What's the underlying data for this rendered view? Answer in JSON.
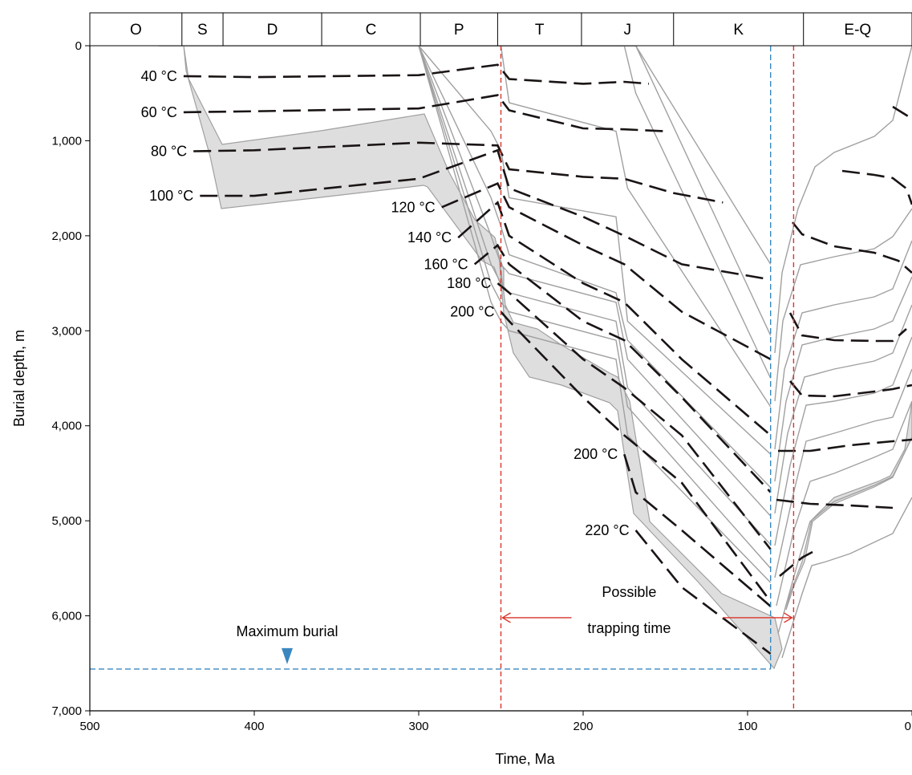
{
  "chart_data": {
    "type": "line",
    "xlabel": "Time, Ma",
    "ylabel": "Burial depth, m",
    "xlim": [
      500,
      0
    ],
    "ylim": [
      0,
      7000
    ],
    "x_ticks": [
      500,
      400,
      300,
      200,
      100,
      0
    ],
    "x_tick_labels": [
      "500",
      "400",
      "300",
      "200",
      "100",
      "0"
    ],
    "y_ticks": [
      0,
      1000,
      2000,
      3000,
      4000,
      5000,
      6000,
      7000
    ],
    "y_tick_labels": [
      "0",
      "1,000",
      "2,000",
      "3,000",
      "4,000",
      "5,000",
      "6,000",
      "7,000"
    ],
    "grid": false,
    "periods": [
      {
        "label": "O",
        "start": 500,
        "end": 444
      },
      {
        "label": "S",
        "start": 444,
        "end": 419
      },
      {
        "label": "D",
        "start": 419,
        "end": 359
      },
      {
        "label": "C",
        "start": 359,
        "end": 299
      },
      {
        "label": "P",
        "start": 299,
        "end": 252
      },
      {
        "label": "T",
        "start": 252,
        "end": 201
      },
      {
        "label": "J",
        "start": 201,
        "end": 145
      },
      {
        "label": "K",
        "start": 145,
        "end": 66
      },
      {
        "label": "E-Q",
        "start": 66,
        "end": 0
      }
    ],
    "burial_curves": [
      {
        "x": [
          458,
          443,
          420,
          300,
          294,
          252,
          245,
          175,
          168,
          86
        ],
        "y": [
          0,
          0,
          0,
          0,
          0,
          0,
          0,
          0,
          0,
          2300
        ]
      },
      {
        "x": [
          300,
          252,
          245,
          175,
          168,
          86
        ],
        "y": [
          0,
          0,
          0,
          0,
          0,
          3050
        ]
      },
      {
        "x": [
          300,
          252,
          245,
          175,
          168,
          86
        ],
        "y": [
          0,
          0,
          0,
          0,
          500,
          3500
        ]
      },
      {
        "x": [
          300,
          256,
          250,
          245,
          180,
          173,
          86
        ],
        "y": [
          0,
          0,
          0,
          600,
          900,
          1500,
          3800
        ]
      },
      {
        "x": [
          300,
          256,
          250,
          245,
          180,
          173,
          86
        ],
        "y": [
          0,
          900,
          1100,
          1600,
          1800,
          2900,
          4300
        ]
      },
      {
        "x": [
          300,
          256,
          250,
          245,
          180,
          173,
          86
        ],
        "y": [
          0,
          1600,
          1900,
          2200,
          2600,
          3100,
          4650
        ]
      },
      {
        "x": [
          300,
          256,
          250,
          245,
          180,
          173,
          86
        ],
        "y": [
          0,
          2000,
          2300,
          2400,
          2700,
          3300,
          4950
        ]
      },
      {
        "x": [
          300,
          256,
          250,
          245,
          180,
          173,
          86
        ],
        "y": [
          0,
          2300,
          2500,
          2600,
          2900,
          3600,
          5250
        ]
      },
      {
        "x": [
          300,
          256,
          250,
          245,
          180,
          173,
          86
        ],
        "y": [
          0,
          2500,
          2700,
          2800,
          3100,
          3800,
          5500
        ]
      },
      {
        "x": [
          300,
          256,
          250,
          245,
          180,
          173,
          86
        ],
        "y": [
          0,
          2700,
          2900,
          3000,
          3300,
          4100,
          5650
        ]
      }
    ],
    "isotherms": [
      {
        "label": "40 °C",
        "x": [
          443,
          400,
          300,
          252,
          245,
          200,
          175,
          160
        ],
        "y": [
          320,
          330,
          310,
          200,
          350,
          400,
          380,
          400
        ]
      },
      {
        "label": "60 °C",
        "x": [
          443,
          400,
          300,
          252,
          245,
          200,
          175,
          150
        ],
        "y": [
          700,
          690,
          660,
          520,
          680,
          870,
          880,
          900
        ]
      },
      {
        "label": "80 °C",
        "x": [
          437,
          400,
          300,
          252,
          245,
          200,
          175,
          145,
          115
        ],
        "y": [
          1110,
          1100,
          1020,
          1050,
          1300,
          1380,
          1400,
          1550,
          1650
        ]
      },
      {
        "label": "100 °C",
        "x": [
          433,
          400,
          300,
          252,
          245,
          200,
          175,
          140,
          90,
          86
        ],
        "y": [
          1580,
          1580,
          1400,
          1100,
          1500,
          1800,
          2000,
          2300,
          2450,
          2460
        ]
      },
      {
        "label": "120 °C",
        "x": [
          286,
          252,
          245,
          200,
          175,
          140,
          86
        ],
        "y": [
          1700,
          1450,
          1700,
          2100,
          2300,
          2800,
          3300
        ]
      },
      {
        "label": "140 °C",
        "x": [
          276,
          252,
          245,
          200,
          175,
          140,
          86
        ],
        "y": [
          2020,
          1650,
          2000,
          2500,
          2700,
          3300,
          4100
        ]
      },
      {
        "label": "160 °C",
        "x": [
          266,
          252,
          245,
          200,
          175,
          140,
          86
        ],
        "y": [
          2300,
          2100,
          2300,
          2900,
          3100,
          3700,
          4700
        ]
      },
      {
        "label": "180 °C",
        "x": [
          252,
          245,
          200,
          175,
          140,
          86
        ],
        "y": [
          2500,
          2600,
          3300,
          3600,
          4100,
          5300
        ]
      },
      {
        "label": "200 °C",
        "x": [
          250,
          245,
          200,
          175,
          140,
          86
        ],
        "y": [
          2800,
          2900,
          3700,
          4100,
          4600,
          5850
        ]
      },
      {
        "label": "200 °C",
        "x": [
          175,
          168,
          140,
          86
        ],
        "y": [
          4300,
          4700,
          5100,
          5900
        ]
      },
      {
        "label": "220 °C",
        "x": [
          168,
          140,
          86
        ],
        "y": [
          5100,
          5700,
          6400
        ]
      }
    ],
    "max_burial_depth": 6560,
    "max_burial_time": 86,
    "trapping_window": [
      250,
      72
    ],
    "annotations": {
      "max_burial": "Maximum burial",
      "trapping_line1": "Possible",
      "trapping_line2": "trapping time"
    },
    "colors": {
      "isotherm": "#1a1414",
      "burial_curve": "#a0a0a0",
      "shaded_layer": "#dedede",
      "max_burial_line": "#3a87c0",
      "trapping_marker": "#d9342b"
    }
  }
}
